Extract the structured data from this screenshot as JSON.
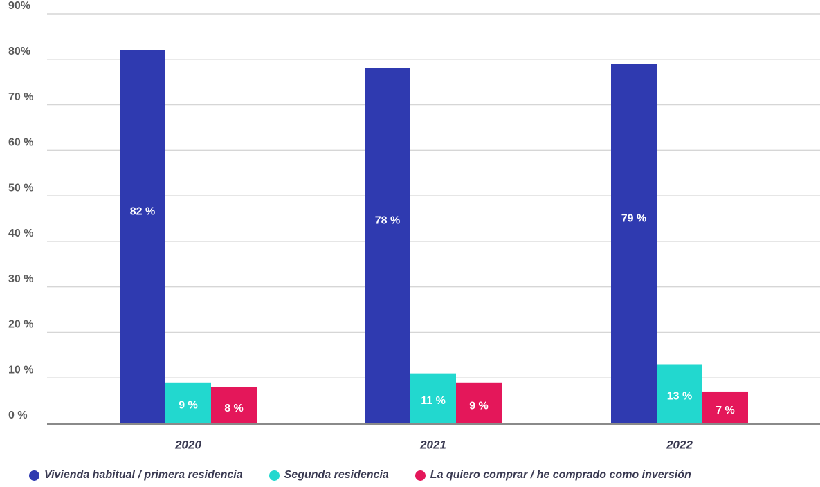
{
  "chart_data": {
    "type": "bar",
    "categories": [
      "2020",
      "2021",
      "2022"
    ],
    "series": [
      {
        "name": "Vivienda habitual / primera residencia",
        "color": "#2f3ab0",
        "values": [
          82,
          78,
          79
        ],
        "labels": [
          "82 %",
          "78 %",
          "79 %"
        ]
      },
      {
        "name": "Segunda residencia",
        "color": "#22d8cf",
        "values": [
          9,
          11,
          13
        ],
        "labels": [
          "9 %",
          "11 %",
          "13 %"
        ]
      },
      {
        "name": "La quiero comprar / he comprado como inversión",
        "color": "#e4175a",
        "values": [
          8,
          9,
          7
        ],
        "labels": [
          "8 %",
          "9 %",
          "7 %"
        ]
      }
    ],
    "ylim": [
      0,
      90
    ],
    "yticks": [
      "0 %",
      "10 %",
      "20 %",
      "30 %",
      "40 %",
      "50 %",
      "60 %",
      "70 %",
      "80%",
      "90%"
    ],
    "title": "",
    "xlabel": "",
    "ylabel": "",
    "grid": true,
    "legend_position": "bottom"
  }
}
